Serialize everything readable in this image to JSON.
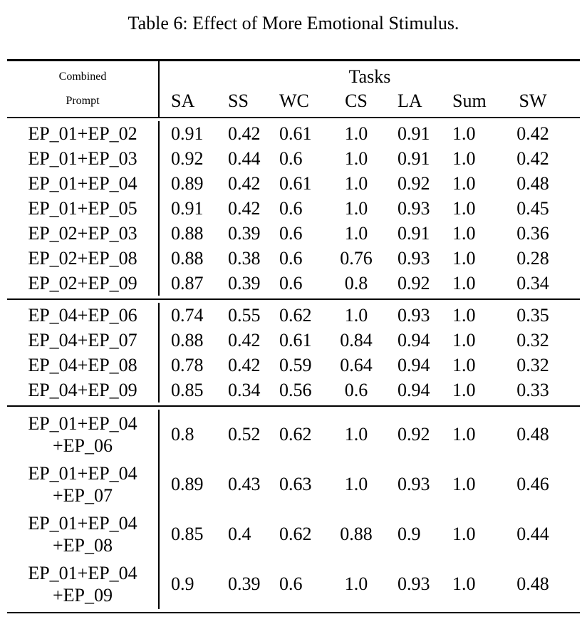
{
  "title": "Table 6: Effect of More Emotional Stimulus.",
  "colors": {
    "text": "#000000",
    "background": "#ffffff",
    "rule": "#000000"
  },
  "table": {
    "header": {
      "prompt_column_lines": [
        "Combined",
        "Prompt"
      ],
      "group_label": "Tasks",
      "task_columns": [
        "SA",
        "SS",
        "WC",
        "CS",
        "LA",
        "Sum",
        "SW"
      ]
    },
    "sections": [
      {
        "rows": [
          {
            "prompt_lines": [
              "EP_01+EP_02"
            ],
            "values": [
              "0.91",
              "0.42",
              "0.61",
              "1.0",
              "0.91",
              "1.0",
              "0.42"
            ]
          },
          {
            "prompt_lines": [
              "EP_01+EP_03"
            ],
            "values": [
              "0.92",
              "0.44",
              "0.6",
              "1.0",
              "0.91",
              "1.0",
              "0.42"
            ]
          },
          {
            "prompt_lines": [
              "EP_01+EP_04"
            ],
            "values": [
              "0.89",
              "0.42",
              "0.61",
              "1.0",
              "0.92",
              "1.0",
              "0.48"
            ]
          },
          {
            "prompt_lines": [
              "EP_01+EP_05"
            ],
            "values": [
              "0.91",
              "0.42",
              "0.6",
              "1.0",
              "0.93",
              "1.0",
              "0.45"
            ]
          },
          {
            "prompt_lines": [
              "EP_02+EP_03"
            ],
            "values": [
              "0.88",
              "0.39",
              "0.6",
              "1.0",
              "0.91",
              "1.0",
              "0.36"
            ]
          },
          {
            "prompt_lines": [
              "EP_02+EP_08"
            ],
            "values": [
              "0.88",
              "0.38",
              "0.6",
              "0.76",
              "0.93",
              "1.0",
              "0.28"
            ]
          },
          {
            "prompt_lines": [
              "EP_02+EP_09"
            ],
            "values": [
              "0.87",
              "0.39",
              "0.6",
              "0.8",
              "0.92",
              "1.0",
              "0.34"
            ]
          }
        ]
      },
      {
        "rows": [
          {
            "prompt_lines": [
              "EP_04+EP_06"
            ],
            "values": [
              "0.74",
              "0.55",
              "0.62",
              "1.0",
              "0.93",
              "1.0",
              "0.35"
            ]
          },
          {
            "prompt_lines": [
              "EP_04+EP_07"
            ],
            "values": [
              "0.88",
              "0.42",
              "0.61",
              "0.84",
              "0.94",
              "1.0",
              "0.32"
            ]
          },
          {
            "prompt_lines": [
              "EP_04+EP_08"
            ],
            "values": [
              "0.78",
              "0.42",
              "0.59",
              "0.64",
              "0.94",
              "1.0",
              "0.32"
            ]
          },
          {
            "prompt_lines": [
              "EP_04+EP_09"
            ],
            "values": [
              "0.85",
              "0.34",
              "0.56",
              "0.6",
              "0.94",
              "1.0",
              "0.33"
            ]
          }
        ]
      },
      {
        "rows": [
          {
            "prompt_lines": [
              "EP_01+EP_04",
              "+EP_06"
            ],
            "values": [
              "0.8",
              "0.52",
              "0.62",
              "1.0",
              "0.92",
              "1.0",
              "0.48"
            ]
          },
          {
            "prompt_lines": [
              "EP_01+EP_04",
              "+EP_07"
            ],
            "values": [
              "0.89",
              "0.43",
              "0.63",
              "1.0",
              "0.93",
              "1.0",
              "0.46"
            ]
          },
          {
            "prompt_lines": [
              "EP_01+EP_04",
              "+EP_08"
            ],
            "values": [
              "0.85",
              "0.4",
              "0.62",
              "0.88",
              "0.9",
              "1.0",
              "0.44"
            ]
          },
          {
            "prompt_lines": [
              "EP_01+EP_04",
              "+EP_09"
            ],
            "values": [
              "0.9",
              "0.39",
              "0.6",
              "1.0",
              "0.93",
              "1.0",
              "0.48"
            ]
          }
        ]
      }
    ]
  }
}
